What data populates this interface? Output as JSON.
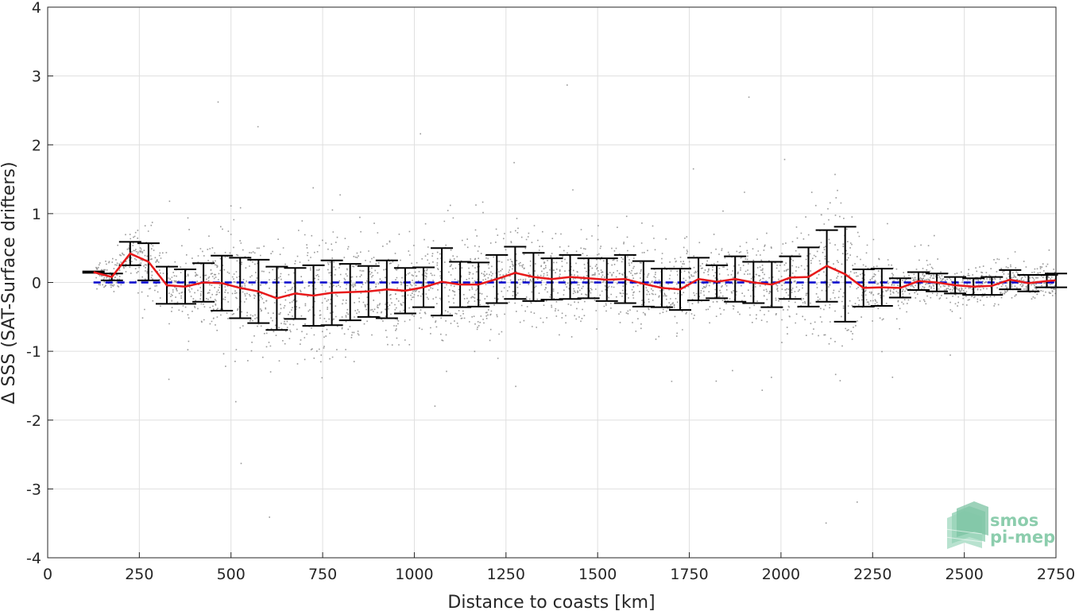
{
  "chart_data": {
    "type": "scatter",
    "title": "",
    "xlabel": "Distance to coasts [km]",
    "ylabel": "Δ SSS (SAT-Surface drifters)",
    "xlim": [
      0,
      2750
    ],
    "ylim": [
      -4,
      4
    ],
    "x_ticks": [
      0,
      250,
      500,
      750,
      1000,
      1250,
      1500,
      1750,
      2000,
      2250,
      2500,
      2750
    ],
    "y_ticks": [
      -4,
      -3,
      -2,
      -1,
      0,
      1,
      2,
      3,
      4
    ],
    "x_tick_labels": [
      "0",
      "250",
      "500",
      "750",
      "1000",
      "1250",
      "1500",
      "1750",
      "2000",
      "2250",
      "2500",
      "2750"
    ],
    "y_tick_labels": [
      "-4",
      "-3",
      "-2",
      "-1",
      "0",
      "1",
      "2",
      "3",
      "4"
    ],
    "grid": true,
    "reference_line": {
      "y": 0,
      "color": "#0000cc",
      "style": "dashed"
    },
    "scatter_color": "#808080",
    "mean_line_color": "#e8191a",
    "errorbar_color": "#000000",
    "series": [
      {
        "name": "",
        "kind": "mean_with_errorbars",
        "x": [
          125,
          175,
          225,
          275,
          325,
          375,
          425,
          475,
          525,
          575,
          625,
          675,
          725,
          775,
          825,
          875,
          925,
          975,
          1025,
          1075,
          1125,
          1175,
          1225,
          1275,
          1325,
          1375,
          1425,
          1475,
          1525,
          1575,
          1625,
          1675,
          1725,
          1775,
          1825,
          1875,
          1925,
          1975,
          2025,
          2075,
          2125,
          2175,
          2225,
          2275,
          2325,
          2375,
          2425,
          2475,
          2525,
          2575,
          2625,
          2675,
          2725,
          2750
        ],
        "mean": [
          0.15,
          0.08,
          0.42,
          0.3,
          -0.04,
          -0.06,
          0.0,
          -0.01,
          -0.08,
          -0.13,
          -0.23,
          -0.16,
          -0.19,
          -0.15,
          -0.14,
          -0.13,
          -0.1,
          -0.12,
          -0.07,
          0.01,
          -0.03,
          -0.03,
          0.05,
          0.14,
          0.08,
          0.05,
          0.08,
          0.06,
          0.04,
          0.05,
          -0.02,
          -0.08,
          -0.1,
          0.05,
          0.01,
          0.05,
          0.0,
          -0.03,
          0.07,
          0.08,
          0.24,
          0.12,
          -0.08,
          -0.07,
          -0.08,
          0.02,
          0.0,
          -0.04,
          -0.06,
          -0.05,
          0.04,
          -0.01,
          0.02,
          0.03
        ],
        "err": [
          0.01,
          0.05,
          0.17,
          0.27,
          0.27,
          0.25,
          0.28,
          0.4,
          0.44,
          0.46,
          0.46,
          0.37,
          0.44,
          0.47,
          0.41,
          0.37,
          0.42,
          0.33,
          0.29,
          0.49,
          0.33,
          0.32,
          0.35,
          0.38,
          0.35,
          0.3,
          0.32,
          0.29,
          0.31,
          0.35,
          0.33,
          0.28,
          0.3,
          0.31,
          0.24,
          0.33,
          0.3,
          0.33,
          0.31,
          0.43,
          0.52,
          0.69,
          0.27,
          0.27,
          0.14,
          0.13,
          0.13,
          0.12,
          0.12,
          0.13,
          0.14,
          0.12,
          0.09,
          0.1
        ]
      }
    ]
  },
  "logo": {
    "line1": "smos",
    "line2": "pi-mep"
  }
}
